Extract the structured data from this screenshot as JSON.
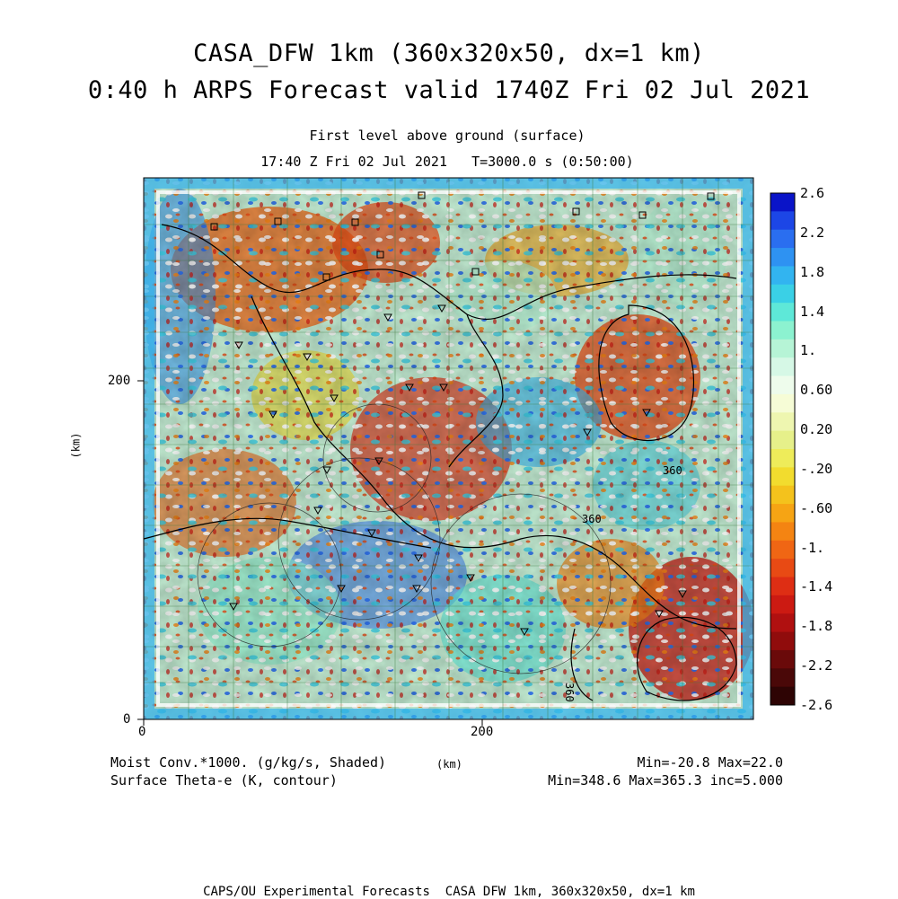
{
  "header": {
    "title_line1": "CASA_DFW 1km (360x320x50, dx=1 km)",
    "title_line2": "0:40 h ARPS Forecast valid 1740Z Fri 02 Jul 2021",
    "level": "First level above ground (surface)",
    "time": "17:40 Z Fri 02 Jul 2021   T=3000.0 s (0:50:00)"
  },
  "axes": {
    "x_ticks": [
      "0",
      "200"
    ],
    "y_ticks": [
      "0",
      "200"
    ],
    "x_unit": "(km)",
    "y_unit": "(km)"
  },
  "colorbar": {
    "labels": [
      "2.6",
      "2.2",
      "1.8",
      "1.4",
      "1.",
      "0.60",
      "0.20",
      "-.20",
      "-.60",
      "-1.",
      "-1.4",
      "-1.8",
      "-2.2",
      "-2.6"
    ],
    "colors": [
      "#0a14c8",
      "#1c46e6",
      "#2a6ef0",
      "#2e92f2",
      "#32b4f0",
      "#3ad0e6",
      "#5ee8d8",
      "#8cf2d0",
      "#b6f4d6",
      "#d6f8e6",
      "#eefcec",
      "#f6fcd6",
      "#eef6b0",
      "#e6f08a",
      "#eeec5a",
      "#f2dc2e",
      "#f4c21c",
      "#f6a414",
      "#f48412",
      "#f06614",
      "#e84a14",
      "#de2e14",
      "#cc1a12",
      "#b01010",
      "#900c0c",
      "#6a0a0a",
      "#4a0808",
      "#2e0404"
    ],
    "accent": "#1c46e6"
  },
  "footer": {
    "left_line1": "Moist Conv.*1000. (g/kg/s, Shaded)",
    "left_line2": "Surface Theta-e (K, contour)",
    "center_unit": "(km)",
    "right_line1": "Min=-20.8 Max=22.0",
    "right_line2": "Min=348.6 Max=365.3 inc=5.000"
  },
  "contour_labels": [
    "360",
    "360",
    "360"
  ],
  "credit": "CAPS/OU Experimental Forecasts  CASA DFW 1km, 360x320x50, dx=1 km"
}
